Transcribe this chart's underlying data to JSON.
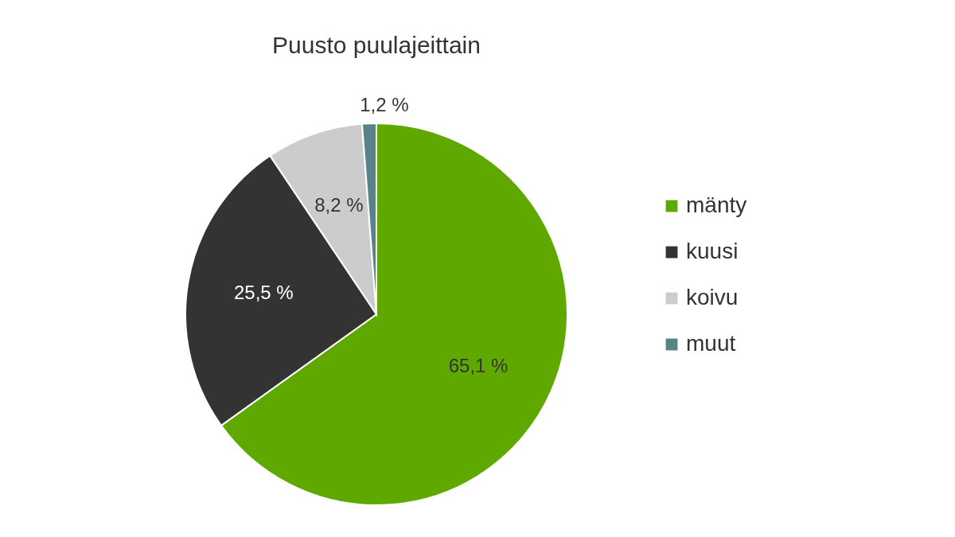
{
  "chart_data": {
    "type": "pie",
    "title": "Puusto puulajeittain",
    "categories": [
      "mänty",
      "kuusi",
      "koivu",
      "muut"
    ],
    "values": [
      65.1,
      25.5,
      8.2,
      1.2
    ],
    "colors": [
      "#5fa800",
      "#333333",
      "#cccccc",
      "#578389"
    ],
    "value_labels": [
      "65,1 %",
      "25,5 %",
      "8,2 %",
      "1,2 %"
    ],
    "legend": "right"
  }
}
